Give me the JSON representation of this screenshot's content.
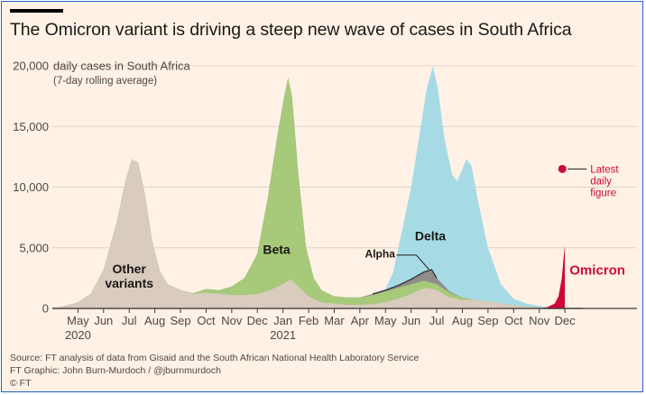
{
  "title": "The Omicron variant is driving a steep new wave of cases in South Africa",
  "chart_data": {
    "type": "area",
    "title": "The Omicron variant is driving a steep new wave of cases in South Africa",
    "ylabel": "daily cases in South Africa",
    "ylabel_note": "(7-day rolling average)",
    "ylim": [
      0,
      20000
    ],
    "yticks": [
      "0",
      "5,000",
      "10,000",
      "15,000",
      "20,000"
    ],
    "ytick_values": [
      0,
      5000,
      10000,
      15000,
      20000
    ],
    "xlim": [
      0,
      20
    ],
    "xticks": [
      {
        "label": "May",
        "x": 1
      },
      {
        "label": "Jun",
        "x": 2
      },
      {
        "label": "Jul",
        "x": 3
      },
      {
        "label": "Aug",
        "x": 4
      },
      {
        "label": "Sep",
        "x": 5
      },
      {
        "label": "Oct",
        "x": 6
      },
      {
        "label": "Nov",
        "x": 7
      },
      {
        "label": "Dec",
        "x": 8
      },
      {
        "label": "Jan",
        "x": 9
      },
      {
        "label": "Feb",
        "x": 10
      },
      {
        "label": "Mar",
        "x": 11
      },
      {
        "label": "Apr",
        "x": 12
      },
      {
        "label": "May",
        "x": 13
      },
      {
        "label": "Jun",
        "x": 14
      },
      {
        "label": "Jul",
        "x": 15
      },
      {
        "label": "Aug",
        "x": 16
      },
      {
        "label": "Sep",
        "x": 17
      },
      {
        "label": "Oct",
        "x": 18
      },
      {
        "label": "Nov",
        "x": 19
      },
      {
        "label": "Dec",
        "x": 20
      }
    ],
    "year_labels": [
      {
        "label": "2020",
        "x": 1
      },
      {
        "label": "2021",
        "x": 9
      }
    ],
    "grid": true,
    "series": [
      {
        "name": "Other variants",
        "color": "#d9cbbd",
        "points": [
          [
            0,
            0
          ],
          [
            0.5,
            200
          ],
          [
            1,
            500
          ],
          [
            1.5,
            1200
          ],
          [
            2,
            3200
          ],
          [
            2.5,
            7000
          ],
          [
            2.85,
            10500
          ],
          [
            3.1,
            12300
          ],
          [
            3.35,
            12000
          ],
          [
            3.6,
            9500
          ],
          [
            3.9,
            5500
          ],
          [
            4.2,
            3000
          ],
          [
            4.5,
            2000
          ],
          [
            5,
            1500
          ],
          [
            5.5,
            1200
          ],
          [
            6,
            1300
          ],
          [
            6.5,
            1200
          ],
          [
            7,
            1100
          ],
          [
            7.5,
            1100
          ],
          [
            8,
            1200
          ],
          [
            8.5,
            1500
          ],
          [
            9,
            2000
          ],
          [
            9.3,
            2400
          ],
          [
            9.6,
            1800
          ],
          [
            10,
            1000
          ],
          [
            10.5,
            500
          ],
          [
            11,
            400
          ],
          [
            11.5,
            300
          ],
          [
            12,
            300
          ],
          [
            12.5,
            350
          ],
          [
            13,
            500
          ],
          [
            13.5,
            800
          ],
          [
            14,
            1200
          ],
          [
            14.3,
            1500
          ],
          [
            14.6,
            1700
          ],
          [
            15,
            1500
          ],
          [
            15.5,
            900
          ],
          [
            16,
            700
          ],
          [
            16.5,
            700
          ],
          [
            17,
            600
          ],
          [
            17.5,
            400
          ],
          [
            18,
            250
          ],
          [
            18.5,
            150
          ],
          [
            19,
            100
          ],
          [
            19.5,
            0
          ]
        ]
      },
      {
        "name": "Beta",
        "color": "#a7c97a",
        "points": [
          [
            0,
            0
          ],
          [
            0.5,
            200
          ],
          [
            1,
            500
          ],
          [
            1.5,
            1200
          ],
          [
            2,
            3200
          ],
          [
            2.5,
            7000
          ],
          [
            2.85,
            10500
          ],
          [
            3.1,
            12300
          ],
          [
            3.35,
            12000
          ],
          [
            3.6,
            9500
          ],
          [
            3.9,
            5500
          ],
          [
            4.2,
            3000
          ],
          [
            4.5,
            2000
          ],
          [
            5,
            1500
          ],
          [
            5.5,
            1250
          ],
          [
            6,
            1600
          ],
          [
            6.5,
            1500
          ],
          [
            7,
            1800
          ],
          [
            7.5,
            2500
          ],
          [
            8,
            4500
          ],
          [
            8.4,
            9000
          ],
          [
            8.8,
            14500
          ],
          [
            9.05,
            17500
          ],
          [
            9.2,
            19000
          ],
          [
            9.35,
            17500
          ],
          [
            9.6,
            11000
          ],
          [
            9.9,
            5000
          ],
          [
            10.2,
            2500
          ],
          [
            10.5,
            1500
          ],
          [
            11,
            1000
          ],
          [
            11.5,
            900
          ],
          [
            12,
            900
          ],
          [
            12.5,
            1100
          ],
          [
            13,
            1400
          ],
          [
            13.5,
            1700
          ],
          [
            14,
            2000
          ],
          [
            14.5,
            2300
          ],
          [
            15,
            2000
          ],
          [
            15.5,
            1300
          ],
          [
            16,
            900
          ],
          [
            16.5,
            700
          ],
          [
            17,
            600
          ],
          [
            17.5,
            400
          ],
          [
            18,
            250
          ],
          [
            18.5,
            150
          ],
          [
            19,
            100
          ],
          [
            19.5,
            0
          ]
        ]
      },
      {
        "name": "Alpha",
        "color": "#5d5a59",
        "points": [
          [
            0,
            0
          ],
          [
            0.5,
            200
          ],
          [
            1,
            500
          ],
          [
            1.5,
            1200
          ],
          [
            2,
            3200
          ],
          [
            2.5,
            7000
          ],
          [
            2.85,
            10500
          ],
          [
            3.1,
            12300
          ],
          [
            3.35,
            12000
          ],
          [
            3.6,
            9500
          ],
          [
            3.9,
            5500
          ],
          [
            4.2,
            3000
          ],
          [
            4.5,
            2000
          ],
          [
            5,
            1500
          ],
          [
            5.5,
            1250
          ],
          [
            6,
            1600
          ],
          [
            6.5,
            1500
          ],
          [
            7,
            1800
          ],
          [
            7.5,
            2500
          ],
          [
            8,
            4500
          ],
          [
            8.4,
            9000
          ],
          [
            8.8,
            14500
          ],
          [
            9.05,
            17500
          ],
          [
            9.2,
            19000
          ],
          [
            9.35,
            17500
          ],
          [
            9.6,
            11000
          ],
          [
            9.9,
            5000
          ],
          [
            10.2,
            2500
          ],
          [
            10.5,
            1500
          ],
          [
            11,
            1000
          ],
          [
            11.5,
            900
          ],
          [
            12,
            900
          ],
          [
            12.5,
            1200
          ],
          [
            13,
            1500
          ],
          [
            13.5,
            1900
          ],
          [
            14,
            2400
          ],
          [
            14.5,
            3000
          ],
          [
            14.8,
            3200
          ],
          [
            15,
            2500
          ],
          [
            15.5,
            1400
          ],
          [
            16,
            900
          ],
          [
            16.5,
            700
          ],
          [
            17,
            600
          ],
          [
            17.5,
            400
          ],
          [
            18,
            250
          ],
          [
            18.5,
            150
          ],
          [
            19,
            100
          ],
          [
            19.5,
            0
          ]
        ]
      },
      {
        "name": "Delta",
        "color": "#a6dbe6",
        "points": [
          [
            0,
            0
          ],
          [
            0.5,
            200
          ],
          [
            1,
            500
          ],
          [
            1.5,
            1200
          ],
          [
            2,
            3200
          ],
          [
            2.5,
            7000
          ],
          [
            2.85,
            10500
          ],
          [
            3.1,
            12300
          ],
          [
            3.35,
            12000
          ],
          [
            3.6,
            9500
          ],
          [
            3.9,
            5500
          ],
          [
            4.2,
            3000
          ],
          [
            4.5,
            2000
          ],
          [
            5,
            1500
          ],
          [
            5.5,
            1250
          ],
          [
            6,
            1600
          ],
          [
            6.5,
            1500
          ],
          [
            7,
            1800
          ],
          [
            7.5,
            2500
          ],
          [
            8,
            4500
          ],
          [
            8.4,
            9000
          ],
          [
            8.8,
            14500
          ],
          [
            9.05,
            17500
          ],
          [
            9.2,
            19000
          ],
          [
            9.35,
            17500
          ],
          [
            9.6,
            11000
          ],
          [
            9.9,
            5000
          ],
          [
            10.2,
            2500
          ],
          [
            10.5,
            1500
          ],
          [
            11,
            1000
          ],
          [
            11.5,
            900
          ],
          [
            12,
            900
          ],
          [
            12.5,
            1200
          ],
          [
            13,
            1600
          ],
          [
            13.3,
            3000
          ],
          [
            13.6,
            6000
          ],
          [
            14,
            10000
          ],
          [
            14.3,
            14000
          ],
          [
            14.6,
            18000
          ],
          [
            14.85,
            20000
          ],
          [
            15.05,
            18000
          ],
          [
            15.3,
            14000
          ],
          [
            15.6,
            11000
          ],
          [
            15.8,
            10500
          ],
          [
            16,
            11500
          ],
          [
            16.15,
            12300
          ],
          [
            16.35,
            11800
          ],
          [
            16.6,
            9000
          ],
          [
            17,
            5000
          ],
          [
            17.5,
            2000
          ],
          [
            18,
            800
          ],
          [
            18.5,
            400
          ],
          [
            19,
            200
          ],
          [
            19.5,
            100
          ]
        ]
      },
      {
        "name": "Omicron",
        "color": "#cc0a3a",
        "points": [
          [
            19.0,
            0
          ],
          [
            19.3,
            100
          ],
          [
            19.6,
            400
          ],
          [
            19.75,
            1000
          ],
          [
            19.88,
            2500
          ],
          [
            19.95,
            4200
          ],
          [
            20.0,
            5200
          ],
          [
            20.0,
            0
          ]
        ]
      }
    ],
    "annotations": [
      {
        "text": "Other",
        "x": 3.0,
        "y": 2900
      },
      {
        "text": "variants",
        "x": 3.0,
        "y": 1700
      },
      {
        "text": "Beta",
        "x": 8.75,
        "y": 4500
      },
      {
        "text": "Alpha",
        "x": 12.2,
        "y": 4200
      },
      {
        "text": "Delta",
        "x": 14.75,
        "y": 5600
      },
      {
        "text": "Omicron",
        "x": 19.9,
        "y": 2800
      }
    ],
    "latest_daily_figure": {
      "value": 11500,
      "x": 19.9,
      "label": [
        "Latest",
        "daily",
        "figure"
      ]
    }
  },
  "footer": {
    "source": "Source: FT analysis of data from Gisaid and the South African National Health Laboratory Service",
    "graphic": "FT Graphic: John Burn-Murdoch / @jburnmurdoch",
    "copyright": "© FT"
  }
}
